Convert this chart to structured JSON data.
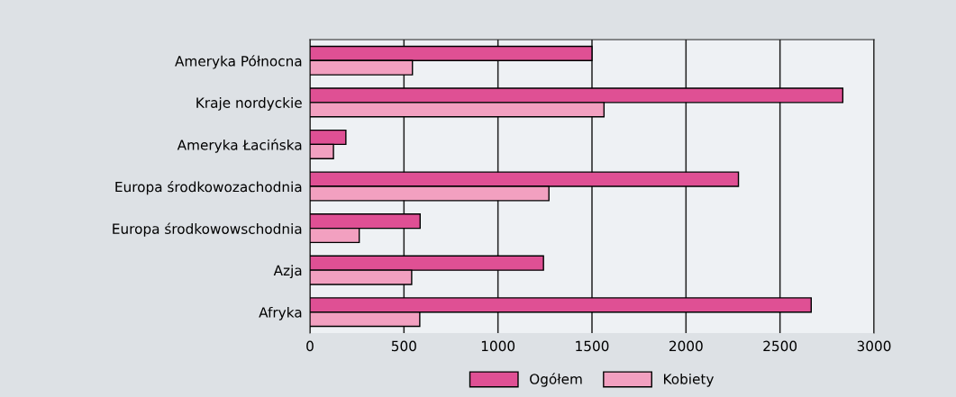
{
  "chart_data": {
    "type": "bar",
    "orientation": "horizontal",
    "categories": [
      "Ameryka Północna",
      "Kraje nordyckie",
      "Ameryka Łacińska",
      "Europa środkowozachodnia",
      "Europa środkowowschodnia",
      "Azja",
      "Afryka"
    ],
    "series": [
      {
        "name": "Ogółem",
        "color": "#df5094",
        "values": [
          1500,
          2834,
          191,
          2279,
          586,
          1242,
          2666
        ]
      },
      {
        "name": "Kobiety",
        "color": "#f2a0c0",
        "values": [
          545,
          1564,
          125,
          1271,
          262,
          541,
          584
        ]
      }
    ],
    "xlim": [
      0,
      3000
    ],
    "xticks": [
      0,
      500,
      1000,
      1500,
      2000,
      2500,
      3000
    ],
    "grid": "x",
    "legend": "bottom"
  }
}
